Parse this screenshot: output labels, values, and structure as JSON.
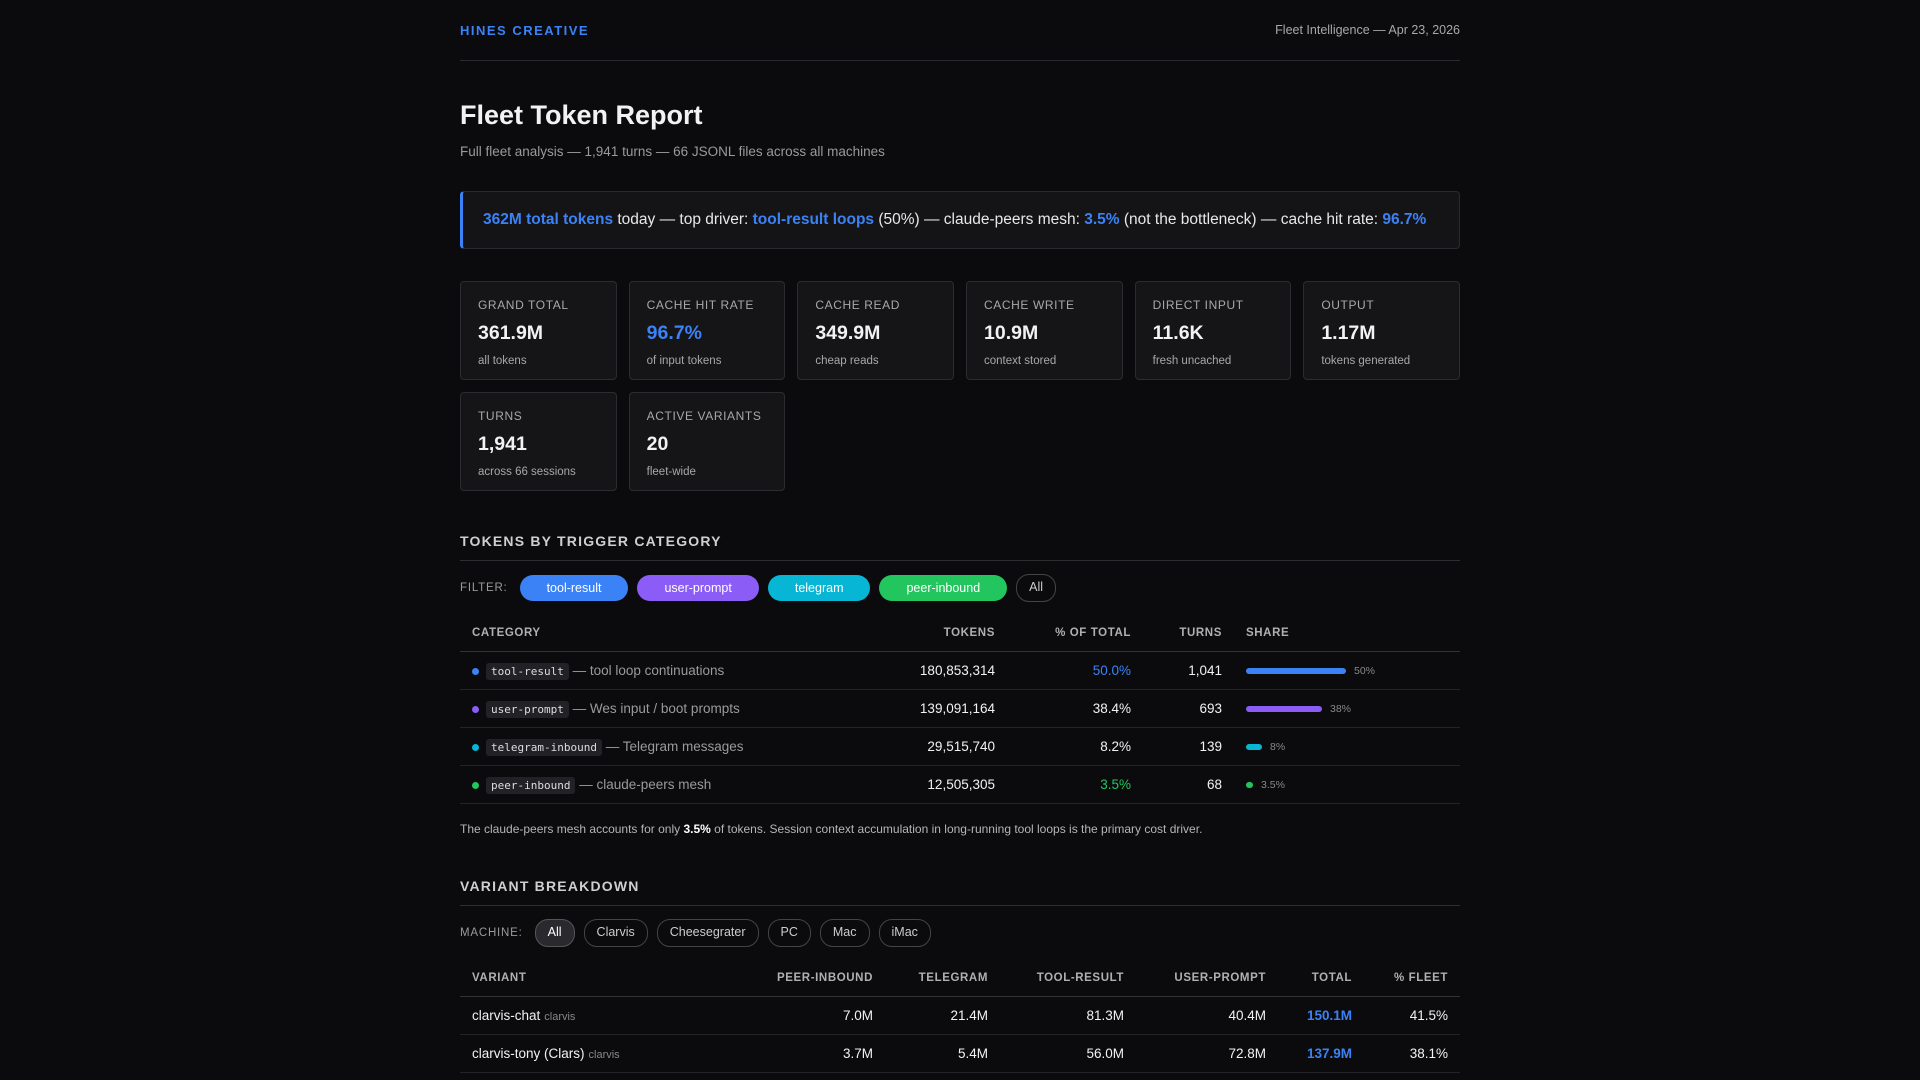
{
  "header": {
    "brand": "HINES CREATIVE",
    "meta": "Fleet Intelligence — Apr 23, 2026"
  },
  "title": "Fleet Token Report",
  "subtitle": "Full fleet analysis — 1,941 turns — 66 JSONL files across all machines",
  "callout": [
    "362M total tokens",
    " today — top driver: ",
    "tool-result loops",
    " (50%) — claude-peers mesh: ",
    "3.5%",
    " (not the bottleneck) — cache hit rate: ",
    "96.7%"
  ],
  "stats": [
    {
      "label": "GRAND TOTAL",
      "value": "361.9M",
      "note": "all tokens"
    },
    {
      "label": "CACHE HIT RATE",
      "value": "96.7%",
      "note": "of input tokens"
    },
    {
      "label": "CACHE READ",
      "value": "349.9M",
      "note": "cheap reads"
    },
    {
      "label": "CACHE WRITE",
      "value": "10.9M",
      "note": "context stored"
    },
    {
      "label": "DIRECT INPUT",
      "value": "11.6K",
      "note": "fresh uncached"
    },
    {
      "label": "OUTPUT",
      "value": "1.17M",
      "note": "tokens generated"
    },
    {
      "label": "TURNS",
      "value": "1,941",
      "note": "across 66 sessions"
    },
    {
      "label": "ACTIVE VARIANTS",
      "value": "20",
      "note": "fleet-wide"
    }
  ],
  "category_section": {
    "heading": "TOKENS BY TRIGGER CATEGORY",
    "filter_label": "FILTER:",
    "filters": [
      "tool-result",
      "user-prompt",
      "telegram",
      "peer-inbound",
      "All"
    ],
    "columns": [
      "CATEGORY",
      "TOKENS",
      "% OF TOTAL",
      "TURNS",
      "SHARE"
    ],
    "rows": [
      {
        "code": "tool-result",
        "desc": "— tool loop continuations",
        "tokens": "180,853,314",
        "pct": "50.0%",
        "turns": "1,041",
        "share": {
          "value": 50,
          "label": "50%"
        },
        "color": "#3b82f6"
      },
      {
        "code": "user-prompt",
        "desc": "— Wes input / boot prompts",
        "tokens": "139,091,164",
        "pct": "38.4%",
        "turns": "693",
        "share": {
          "value": 38,
          "label": "38%"
        },
        "color": "#8b5cf6"
      },
      {
        "code": "telegram-inbound",
        "desc": "— Telegram messages",
        "tokens": "29,515,740",
        "pct": "8.2%",
        "turns": "139",
        "share": {
          "value": 8,
          "label": "8%"
        },
        "color": "#06b6d4"
      },
      {
        "code": "peer-inbound",
        "desc": "— claude-peers mesh",
        "tokens": "12,505,305",
        "pct": "3.5%",
        "turns": "68",
        "share": {
          "value": 3.5,
          "label": "3.5%"
        },
        "color": "#22c55e"
      }
    ],
    "note": [
      "The claude-peers mesh accounts for only ",
      "3.5%",
      " of tokens. Session context accumulation in long-running tool loops is the primary cost driver."
    ]
  },
  "variant_section": {
    "heading": "VARIANT BREAKDOWN",
    "filter_label": "MACHINE:",
    "filters": [
      "All",
      "Clarvis",
      "Cheesegrater",
      "PC",
      "Mac",
      "iMac"
    ],
    "columns": [
      "VARIANT",
      "PEER-INBOUND",
      "TELEGRAM",
      "TOOL-RESULT",
      "USER-PROMPT",
      "TOTAL",
      "% FLEET"
    ],
    "rows": [
      {
        "name": "clarvis-chat",
        "machine": "clarvis",
        "cells": [
          "7.0M",
          "21.4M",
          "81.3M",
          "40.4M",
          "150.1M",
          "41.5%"
        ]
      },
      {
        "name": "clarvis-tony (Clars)",
        "machine": "clarvis",
        "cells": [
          "3.7M",
          "5.4M",
          "56.0M",
          "72.8M",
          "137.9M",
          "38.1%"
        ]
      }
    ]
  }
}
